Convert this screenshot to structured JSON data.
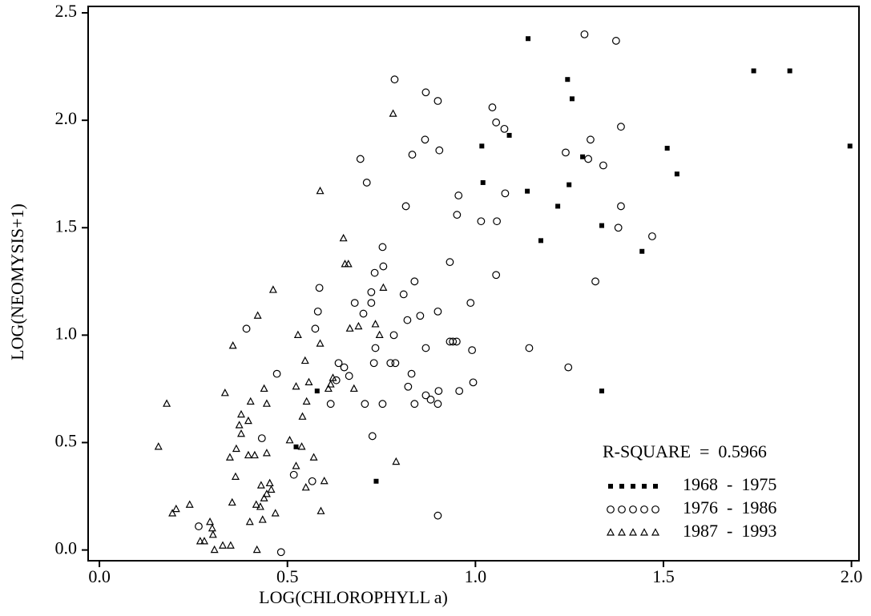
{
  "chart_data": {
    "type": "scatter",
    "xlabel": "LOG(CHLOROPHYLL a)",
    "ylabel": "LOG(NEOMYSIS+1)",
    "annotation": "R-SQUARE  =  0.5966",
    "legend": "lower right",
    "xlim": [
      -0.03,
      2.02
    ],
    "ylim": [
      -0.05,
      2.53
    ],
    "xticks": [
      {
        "value": 0,
        "label": "0.0"
      },
      {
        "value": 0.5,
        "label": "0.5"
      },
      {
        "value": 1,
        "label": "1.0"
      },
      {
        "value": 1.5,
        "label": "1.5"
      },
      {
        "value": 2,
        "label": "2.0"
      }
    ],
    "yticks": [
      {
        "value": 0,
        "label": "0.0"
      },
      {
        "value": 0.5,
        "label": "0.5"
      },
      {
        "value": 1,
        "label": "1.0"
      },
      {
        "value": 1.5,
        "label": "1.5"
      },
      {
        "value": 2,
        "label": "2.0"
      },
      {
        "value": 2.5,
        "label": "2.5"
      }
    ],
    "series": [
      {
        "name": "1968  -  1975",
        "marker": "square",
        "color": "#000000",
        "x": [
          1.14,
          1.245,
          1.257,
          1.09,
          1.017,
          1.285,
          1.51,
          1.536,
          1.74,
          1.836,
          1.996,
          1.02,
          1.249,
          1.138,
          1.219,
          1.174,
          1.336,
          1.443,
          1.336,
          0.579,
          0.736,
          0.523
        ],
        "values": [
          2.38,
          2.19,
          2.1,
          1.93,
          1.88,
          1.83,
          1.87,
          1.75,
          2.23,
          2.23,
          1.88,
          1.71,
          1.7,
          1.67,
          1.6,
          1.44,
          1.51,
          1.39,
          0.74,
          0.74,
          0.32,
          0.48
        ]
      },
      {
        "name": "1976  -  1986",
        "marker": "circle",
        "color": "#000000",
        "x": [
          0.785,
          0.868,
          0.9,
          1.045,
          1.29,
          1.374,
          1.055,
          1.077,
          1.387,
          0.866,
          1.306,
          0.904,
          0.832,
          1.24,
          1.3,
          0.694,
          1.34,
          0.711,
          1.079,
          0.955,
          0.815,
          1.387,
          0.951,
          1.015,
          1.057,
          1.38,
          1.47,
          0.753,
          0.932,
          0.755,
          0.732,
          1.055,
          0.838,
          1.319,
          0.585,
          0.723,
          0.809,
          0.723,
          0.679,
          0.987,
          0.581,
          0.702,
          0.9,
          0.853,
          0.819,
          0.574,
          0.391,
          0.783,
          0.932,
          0.94,
          0.95,
          0.734,
          0.868,
          0.991,
          1.143,
          0.774,
          0.787,
          0.73,
          0.636,
          0.651,
          1.247,
          0.664,
          0.472,
          0.83,
          0.63,
          0.821,
          0.994,
          0.957,
          0.902,
          0.881,
          0.868,
          0.706,
          0.753,
          0.838,
          0.9,
          0.615,
          0.432,
          0.726,
          0.517,
          0.566,
          0.264,
          0.483,
          0.9
        ],
        "values": [
          2.19,
          2.13,
          2.09,
          2.06,
          2.4,
          2.37,
          1.99,
          1.96,
          1.97,
          1.91,
          1.91,
          1.86,
          1.84,
          1.85,
          1.82,
          1.82,
          1.79,
          1.71,
          1.66,
          1.65,
          1.6,
          1.6,
          1.56,
          1.53,
          1.53,
          1.5,
          1.46,
          1.41,
          1.34,
          1.32,
          1.29,
          1.28,
          1.25,
          1.25,
          1.22,
          1.2,
          1.19,
          1.15,
          1.15,
          1.15,
          1.11,
          1.1,
          1.11,
          1.09,
          1.07,
          1.03,
          1.03,
          1.0,
          0.97,
          0.97,
          0.97,
          0.94,
          0.94,
          0.93,
          0.94,
          0.87,
          0.87,
          0.87,
          0.87,
          0.85,
          0.85,
          0.81,
          0.82,
          0.82,
          0.79,
          0.76,
          0.78,
          0.74,
          0.74,
          0.7,
          0.72,
          0.68,
          0.68,
          0.68,
          0.68,
          0.68,
          0.52,
          0.53,
          0.35,
          0.32,
          0.11,
          -0.01,
          0.16
        ]
      },
      {
        "name": "1987  -  1993",
        "marker": "triangle",
        "color": "#000000",
        "x": [
          0.781,
          0.587,
          0.649,
          0.653,
          0.662,
          0.462,
          0.755,
          0.421,
          0.734,
          0.689,
          0.666,
          0.528,
          0.745,
          0.355,
          0.587,
          0.547,
          0.621,
          0.615,
          0.557,
          0.677,
          0.609,
          0.523,
          0.438,
          0.334,
          0.179,
          0.402,
          0.445,
          0.551,
          0.377,
          0.396,
          0.372,
          0.54,
          0.377,
          0.506,
          0.364,
          0.396,
          0.413,
          0.445,
          0.347,
          0.538,
          0.57,
          0.157,
          0.523,
          0.789,
          0.362,
          0.43,
          0.453,
          0.549,
          0.598,
          0.445,
          0.438,
          0.457,
          0.353,
          0.417,
          0.428,
          0.434,
          0.468,
          0.589,
          0.24,
          0.204,
          0.194,
          0.294,
          0.3,
          0.302,
          0.268,
          0.279,
          0.4,
          0.306,
          0.328,
          0.349,
          0.419
        ],
        "values": [
          2.03,
          1.67,
          1.45,
          1.33,
          1.33,
          1.21,
          1.22,
          1.09,
          1.05,
          1.04,
          1.03,
          1.0,
          1.0,
          0.95,
          0.96,
          0.88,
          0.8,
          0.77,
          0.78,
          0.75,
          0.75,
          0.76,
          0.75,
          0.73,
          0.68,
          0.69,
          0.68,
          0.69,
          0.63,
          0.6,
          0.58,
          0.62,
          0.54,
          0.51,
          0.47,
          0.44,
          0.44,
          0.45,
          0.43,
          0.48,
          0.43,
          0.48,
          0.39,
          0.41,
          0.34,
          0.3,
          0.31,
          0.29,
          0.32,
          0.26,
          0.24,
          0.28,
          0.22,
          0.21,
          0.2,
          0.14,
          0.17,
          0.18,
          0.21,
          0.19,
          0.17,
          0.13,
          0.1,
          0.07,
          0.04,
          0.04,
          0.13,
          0.0,
          0.02,
          0.02,
          0.0
        ]
      }
    ]
  }
}
